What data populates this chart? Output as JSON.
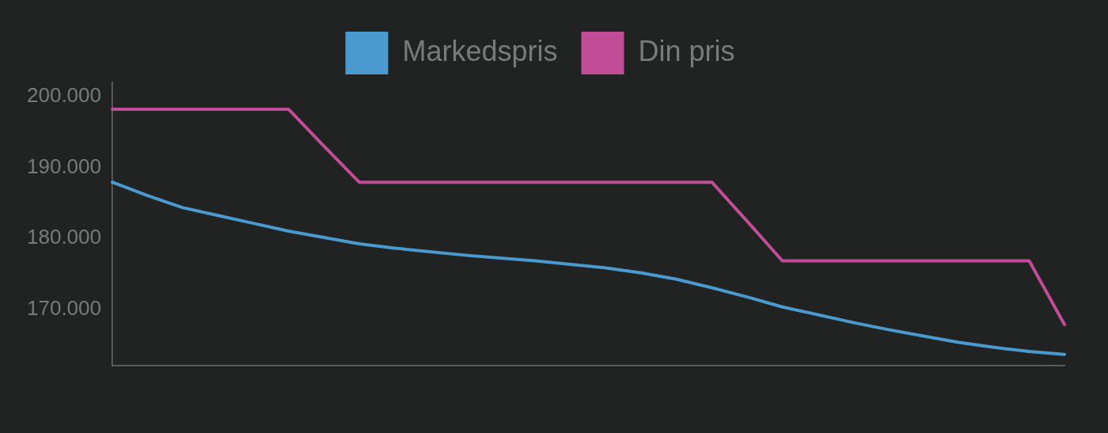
{
  "chart_data": {
    "type": "line",
    "categories": [
      null,
      null,
      null,
      null,
      null,
      null,
      null,
      null,
      null,
      null,
      null,
      null,
      null,
      null,
      null,
      null,
      null,
      null,
      null,
      null,
      null,
      null,
      null,
      null,
      null,
      null,
      null,
      null
    ],
    "series": [
      {
        "name": "Markedspris",
        "color": "#4a9ad0",
        "values": [
          187900,
          186000,
          184300,
          183200,
          182100,
          181000,
          180100,
          179200,
          178600,
          178100,
          177600,
          177200,
          176800,
          176300,
          175800,
          175100,
          174200,
          173000,
          171700,
          170300,
          169200,
          168100,
          167100,
          166200,
          165300,
          164600,
          164000,
          163600
        ]
      },
      {
        "name": "Din pris",
        "color": "#c04d96",
        "values": [
          198200,
          198200,
          198200,
          198200,
          198200,
          198200,
          193000,
          187900,
          187900,
          187900,
          187900,
          187900,
          187900,
          187900,
          187900,
          187900,
          187900,
          187900,
          182400,
          176800,
          176800,
          176800,
          176800,
          176800,
          176800,
          176800,
          176800,
          167800
        ]
      }
    ],
    "ylim": [
      162000,
      202000
    ],
    "yticks": [
      {
        "value": 170000,
        "label": "170.000"
      },
      {
        "value": 180000,
        "label": "180.000"
      },
      {
        "value": 190000,
        "label": "190.000"
      },
      {
        "value": 200000,
        "label": "200.000"
      }
    ],
    "tick_labels": "y",
    "legend": "top",
    "marker": "none",
    "line_style": "solid"
  }
}
